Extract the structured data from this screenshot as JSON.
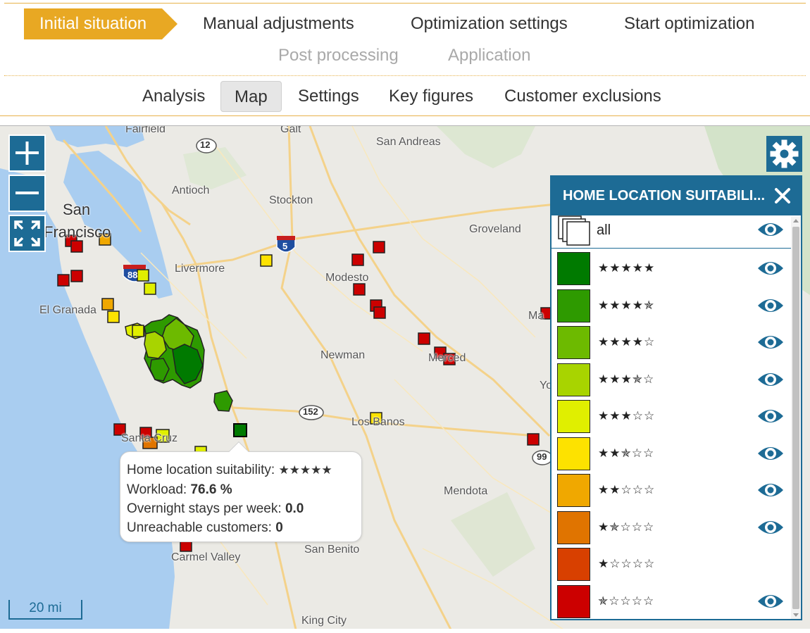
{
  "steps": {
    "initial": "Initial situation",
    "manual": "Manual adjustments",
    "optimization_settings": "Optimization settings",
    "start": "Start optimization",
    "post": "Post processing",
    "application": "Application"
  },
  "tabs": {
    "analysis": "Analysis",
    "map": "Map",
    "settings": "Settings",
    "key_figures": "Key figures",
    "customer_exclusions": "Customer exclusions"
  },
  "map": {
    "labels": {
      "fairfield": "Fairfield",
      "galt": "Galt",
      "san_andreas": "San Andreas",
      "antioch": "Antioch",
      "stockton": "Stockton",
      "san_francisco_1": "San",
      "san_francisco_2": "Francisco",
      "groveland": "Groveland",
      "livermore": "Livermore",
      "modesto": "Modesto",
      "el_granada": "El Granada",
      "newman": "Newman",
      "merced": "Merced",
      "los_banos": "Los Banos",
      "santa_cruz": "Santa Cruz",
      "mendota": "Mendota",
      "san_benito": "San Benito",
      "carmel_valley": "Carmel Valley",
      "king_city": "King City",
      "ma": "Ma",
      "yo": "Yo"
    },
    "shields": {
      "r12": "12",
      "i5": "5",
      "i880": "88",
      "r152": "152",
      "r99": "99"
    },
    "scale": "20 mi"
  },
  "tooltip": {
    "suitability_label": "Home location suitability:",
    "suitability_value": "★★★★★",
    "workload_label": "Workload:",
    "workload_value": "76.6 %",
    "overnight_label": "Overnight stays per week:",
    "overnight_value": "0.0",
    "unreachable_label": "Unreachable customers:",
    "unreachable_value": "0"
  },
  "legend": {
    "title": "HOME LOCATION SUITABILI...",
    "all_label": "all",
    "rows": [
      {
        "stars": "★★★★★",
        "color": "#007a00",
        "visible": true
      },
      {
        "stars": "★★★★✯",
        "color": "#2e9a00",
        "visible": true
      },
      {
        "stars": "★★★★☆",
        "color": "#6dba00",
        "visible": true
      },
      {
        "stars": "★★★✯☆",
        "color": "#a8d400",
        "visible": true
      },
      {
        "stars": "★★★☆☆",
        "color": "#e0ef00",
        "visible": true
      },
      {
        "stars": "★★✯☆☆",
        "color": "#fde200",
        "visible": true
      },
      {
        "stars": "★★☆☆☆",
        "color": "#f0a800",
        "visible": true
      },
      {
        "stars": "★✯☆☆☆",
        "color": "#e07400",
        "visible": true
      },
      {
        "stars": "★☆☆☆☆",
        "color": "#d84000",
        "visible": false
      },
      {
        "stars": "✯☆☆☆☆",
        "color": "#cc0000",
        "visible": true
      }
    ]
  },
  "colors": {
    "accent": "#e8a823",
    "primary": "#1d6b95",
    "water": "#a9cdf0"
  }
}
